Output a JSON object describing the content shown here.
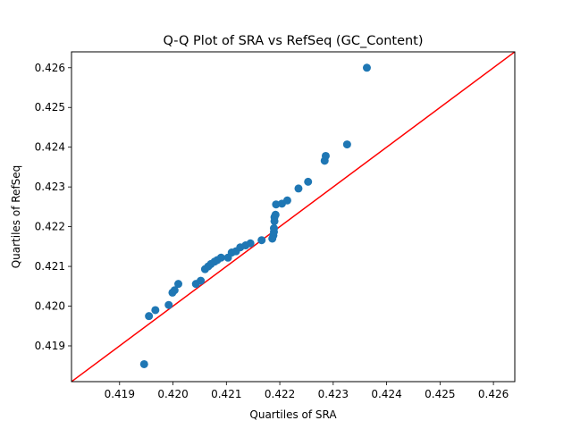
{
  "chart_data": {
    "type": "scatter",
    "title": "Q-Q Plot of SRA vs RefSeq (GC_Content)",
    "xlabel": "Quartiles of SRA",
    "ylabel": "Quartiles of RefSeq",
    "xlim": [
      0.4181,
      0.4264
    ],
    "ylim": [
      0.4181,
      0.4264
    ],
    "xticks": [
      0.419,
      0.42,
      0.421,
      0.422,
      0.423,
      0.424,
      0.425,
      0.426
    ],
    "xtick_labels": [
      "0.419",
      "0.420",
      "0.421",
      "0.422",
      "0.423",
      "0.424",
      "0.425",
      "0.426"
    ],
    "yticks": [
      0.419,
      0.42,
      0.421,
      0.422,
      0.423,
      0.424,
      0.425,
      0.426
    ],
    "ytick_labels": [
      "0.419",
      "0.420",
      "0.421",
      "0.422",
      "0.423",
      "0.424",
      "0.425",
      "0.426"
    ],
    "grid": false,
    "point_color": "#1f77b4",
    "reference_line": {
      "color": "#ff0000",
      "slope": 1,
      "intercept": 0
    },
    "points": [
      [
        0.41946,
        0.41854
      ],
      [
        0.41955,
        0.41975
      ],
      [
        0.41967,
        0.4199
      ],
      [
        0.41992,
        0.42003
      ],
      [
        0.41999,
        0.42034
      ],
      [
        0.42003,
        0.4204
      ],
      [
        0.4201,
        0.42056
      ],
      [
        0.42043,
        0.42056
      ],
      [
        0.42052,
        0.42064
      ],
      [
        0.4206,
        0.42093
      ],
      [
        0.42066,
        0.421
      ],
      [
        0.42071,
        0.42106
      ],
      [
        0.42078,
        0.42112
      ],
      [
        0.42083,
        0.42116
      ],
      [
        0.4209,
        0.42122
      ],
      [
        0.42103,
        0.42122
      ],
      [
        0.4211,
        0.42135
      ],
      [
        0.42118,
        0.42138
      ],
      [
        0.42126,
        0.42148
      ],
      [
        0.42136,
        0.42153
      ],
      [
        0.42145,
        0.42158
      ],
      [
        0.42166,
        0.42166
      ],
      [
        0.42186,
        0.4217
      ],
      [
        0.42188,
        0.42178
      ],
      [
        0.42189,
        0.42187
      ],
      [
        0.42189,
        0.42196
      ],
      [
        0.4219,
        0.42214
      ],
      [
        0.4219,
        0.42224
      ],
      [
        0.42192,
        0.4223
      ],
      [
        0.42193,
        0.42256
      ],
      [
        0.42204,
        0.42258
      ],
      [
        0.42214,
        0.42266
      ],
      [
        0.42235,
        0.42296
      ],
      [
        0.42253,
        0.42313
      ],
      [
        0.42284,
        0.42366
      ],
      [
        0.42286,
        0.42378
      ],
      [
        0.42326,
        0.42407
      ],
      [
        0.42363,
        0.426
      ]
    ]
  }
}
